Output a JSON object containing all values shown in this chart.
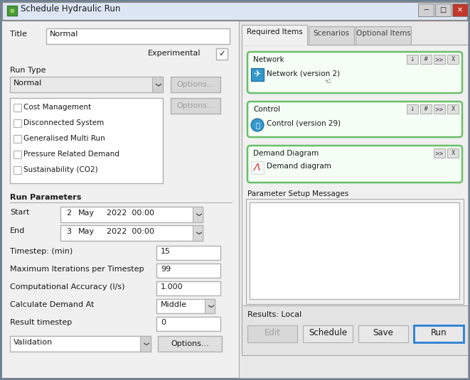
{
  "title_bar": "Schedule Hydraulic Run",
  "dialog_bg": "#f0f0f0",
  "titlebar_bg": "#dce6f5",
  "white": "#ffffff",
  "border_gray": "#b0b0b0",
  "green_border": "#6abf6a",
  "button_face": "#e1e1e1",
  "run_button_border": "#2a7fd4",
  "disabled_color": "#a0a0a0",
  "label_fs": 7.5,
  "small_fs": 6.5,
  "checkboxes": [
    "Cost Management",
    "Disconnected System",
    "Generalised Multi Run",
    "Pressure Related Demand",
    "Sustainability (CO2)"
  ],
  "tab_labels": [
    "Required Items",
    "Scenarios",
    "Optional Items"
  ],
  "net_buttons": [
    "↓",
    "#",
    ">>",
    "X"
  ],
  "ctrl_buttons": [
    "↓",
    "#",
    ">>",
    "X"
  ],
  "dem_buttons": [
    ">>",
    "X"
  ],
  "bottom_buttons": [
    "Edit",
    "Schedule",
    "Save",
    "Run"
  ]
}
